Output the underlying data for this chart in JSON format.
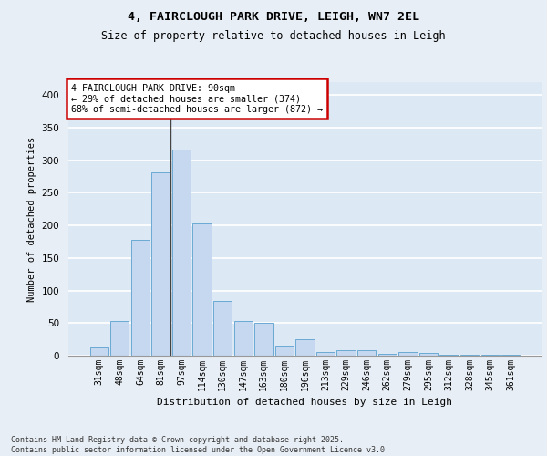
{
  "title1": "4, FAIRCLOUGH PARK DRIVE, LEIGH, WN7 2EL",
  "title2": "Size of property relative to detached houses in Leigh",
  "xlabel": "Distribution of detached houses by size in Leigh",
  "ylabel": "Number of detached properties",
  "categories": [
    "31sqm",
    "48sqm",
    "64sqm",
    "81sqm",
    "97sqm",
    "114sqm",
    "130sqm",
    "147sqm",
    "163sqm",
    "180sqm",
    "196sqm",
    "213sqm",
    "229sqm",
    "246sqm",
    "262sqm",
    "279sqm",
    "295sqm",
    "312sqm",
    "328sqm",
    "345sqm",
    "361sqm"
  ],
  "values": [
    13,
    53,
    178,
    282,
    316,
    203,
    84,
    53,
    50,
    15,
    25,
    5,
    8,
    8,
    3,
    5,
    4,
    2,
    1,
    1,
    1
  ],
  "bar_color": "#c5d8f0",
  "bar_edge_color": "#6aaad4",
  "bg_color": "#dce9f5",
  "grid_color": "#ffffff",
  "annotation_box_text": "4 FAIRCLOUGH PARK DRIVE: 90sqm\n← 29% of detached houses are smaller (374)\n68% of semi-detached houses are larger (872) →",
  "annotation_box_color": "#ffffff",
  "annotation_box_edge_color": "#cc0000",
  "footer_text": "Contains HM Land Registry data © Crown copyright and database right 2025.\nContains public sector information licensed under the Open Government Licence v3.0.",
  "ylim": [
    0,
    420
  ],
  "yticks": [
    0,
    50,
    100,
    150,
    200,
    250,
    300,
    350,
    400
  ],
  "vline_x": 3.5,
  "fig_bg_color": "#e8eef5"
}
